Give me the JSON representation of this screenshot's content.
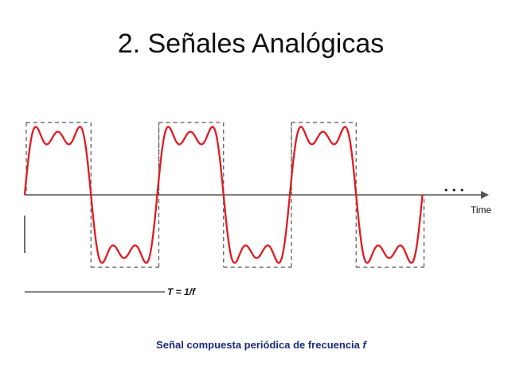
{
  "slide": {
    "title": "2. Señales Analógicas",
    "caption_text": "Señal compuesta periódica de frecuencia",
    "caption_var": "f"
  },
  "diagram": {
    "axis_label": "Time",
    "continuation": "• • •",
    "period_label": "T = 1/f",
    "cycles": 3,
    "harmonics": [
      1,
      3,
      5
    ],
    "colors": {
      "signal": "#e01b22",
      "square_wave": "#555555",
      "axis": "#555555",
      "text": "#111111"
    }
  }
}
